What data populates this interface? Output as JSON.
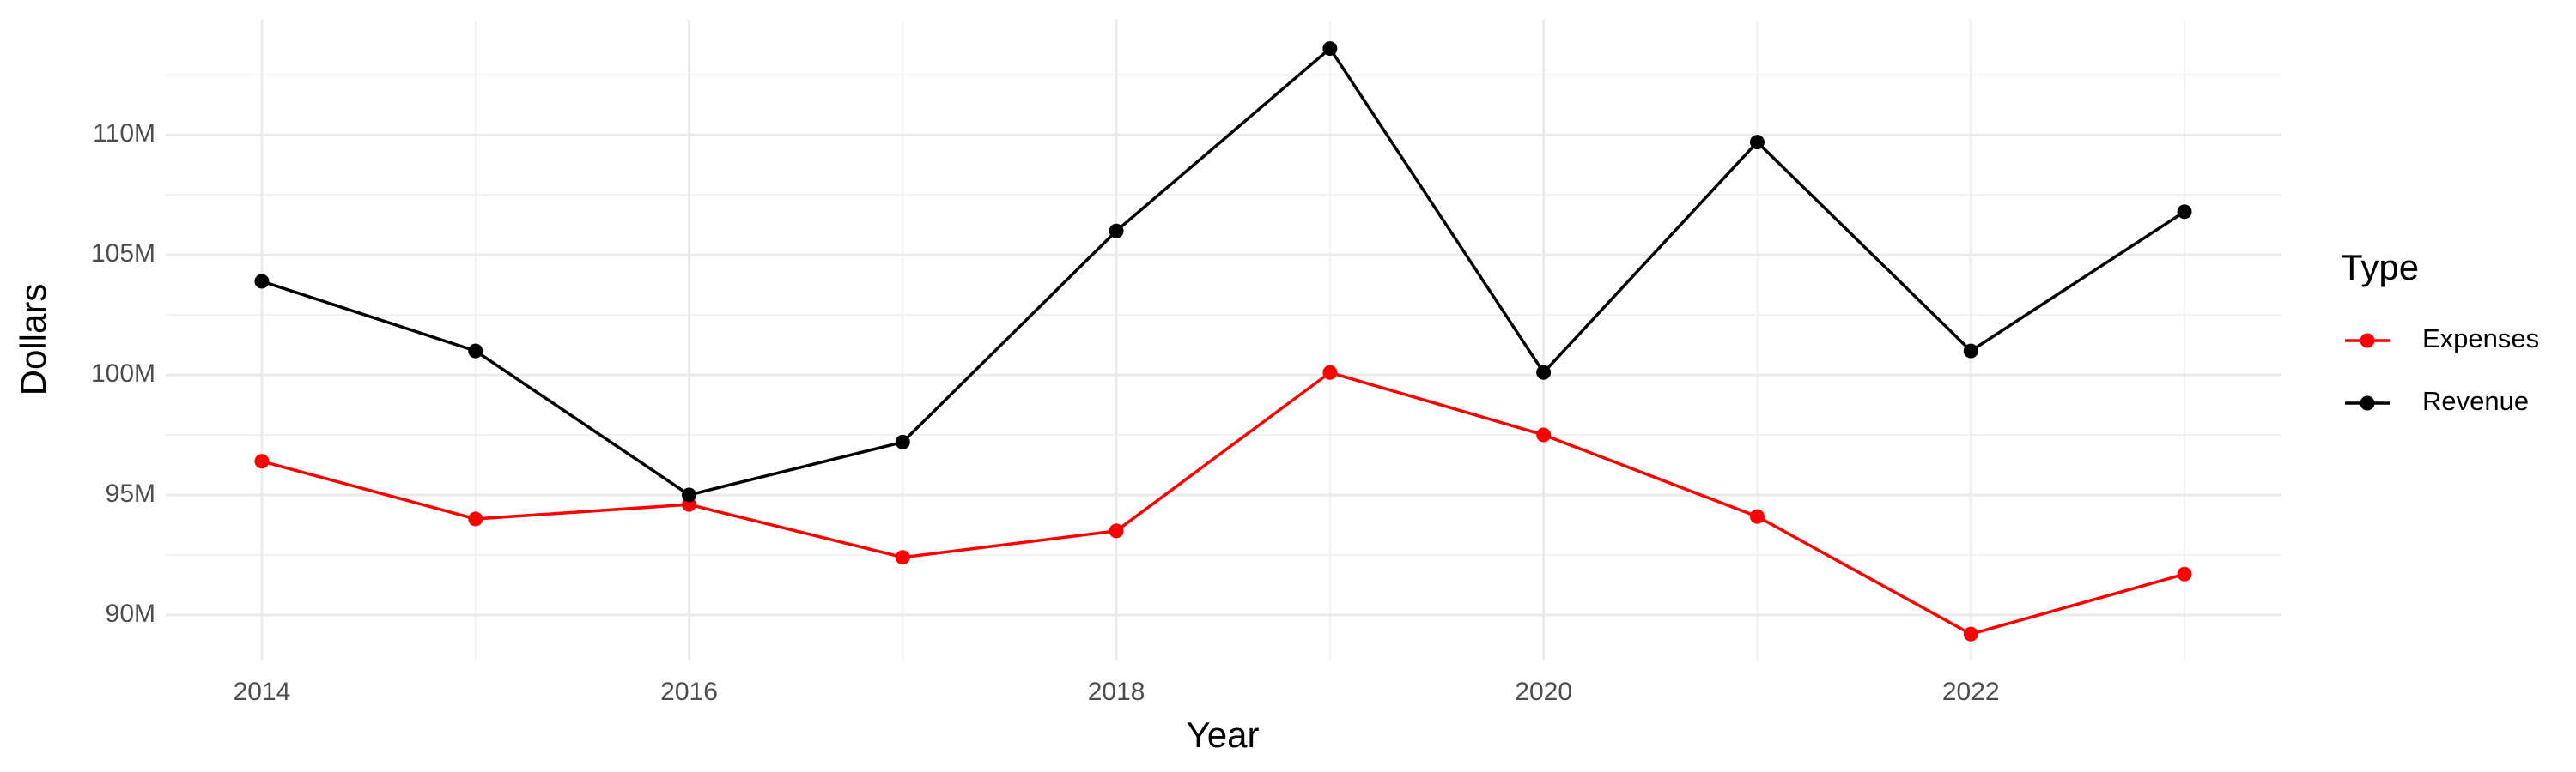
{
  "chart_data": {
    "type": "line",
    "x_label": "Year",
    "y_label": "Dollars",
    "legend_title": "Type",
    "legend": "right",
    "grid": true,
    "x": [
      2014,
      2015,
      2016,
      2017,
      2018,
      2019,
      2020,
      2021,
      2022,
      2023
    ],
    "series": [
      {
        "name": "Expenses",
        "color": "#ff0000",
        "values": [
          96400000,
          94000000,
          94600000,
          92400000,
          93500000,
          100100000,
          97500000,
          94100000,
          89200000,
          91700000
        ]
      },
      {
        "name": "Revenue",
        "color": "#000000",
        "values": [
          103900000,
          101000000,
          95000000,
          97200000,
          106000000,
          113600000,
          100100000,
          109700000,
          101000000,
          106800000
        ]
      }
    ],
    "xlim": [
      2013.55,
      2023.45
    ],
    "xticks": [
      2014,
      2016,
      2018,
      2020,
      2022
    ],
    "ylim": [
      88100000,
      114800000
    ],
    "yticks": [
      {
        "value": 90000000,
        "label": "90M"
      },
      {
        "value": 95000000,
        "label": "95M"
      },
      {
        "value": 100000000,
        "label": "100M"
      },
      {
        "value": 105000000,
        "label": "105M"
      },
      {
        "value": 110000000,
        "label": "110M"
      }
    ]
  }
}
